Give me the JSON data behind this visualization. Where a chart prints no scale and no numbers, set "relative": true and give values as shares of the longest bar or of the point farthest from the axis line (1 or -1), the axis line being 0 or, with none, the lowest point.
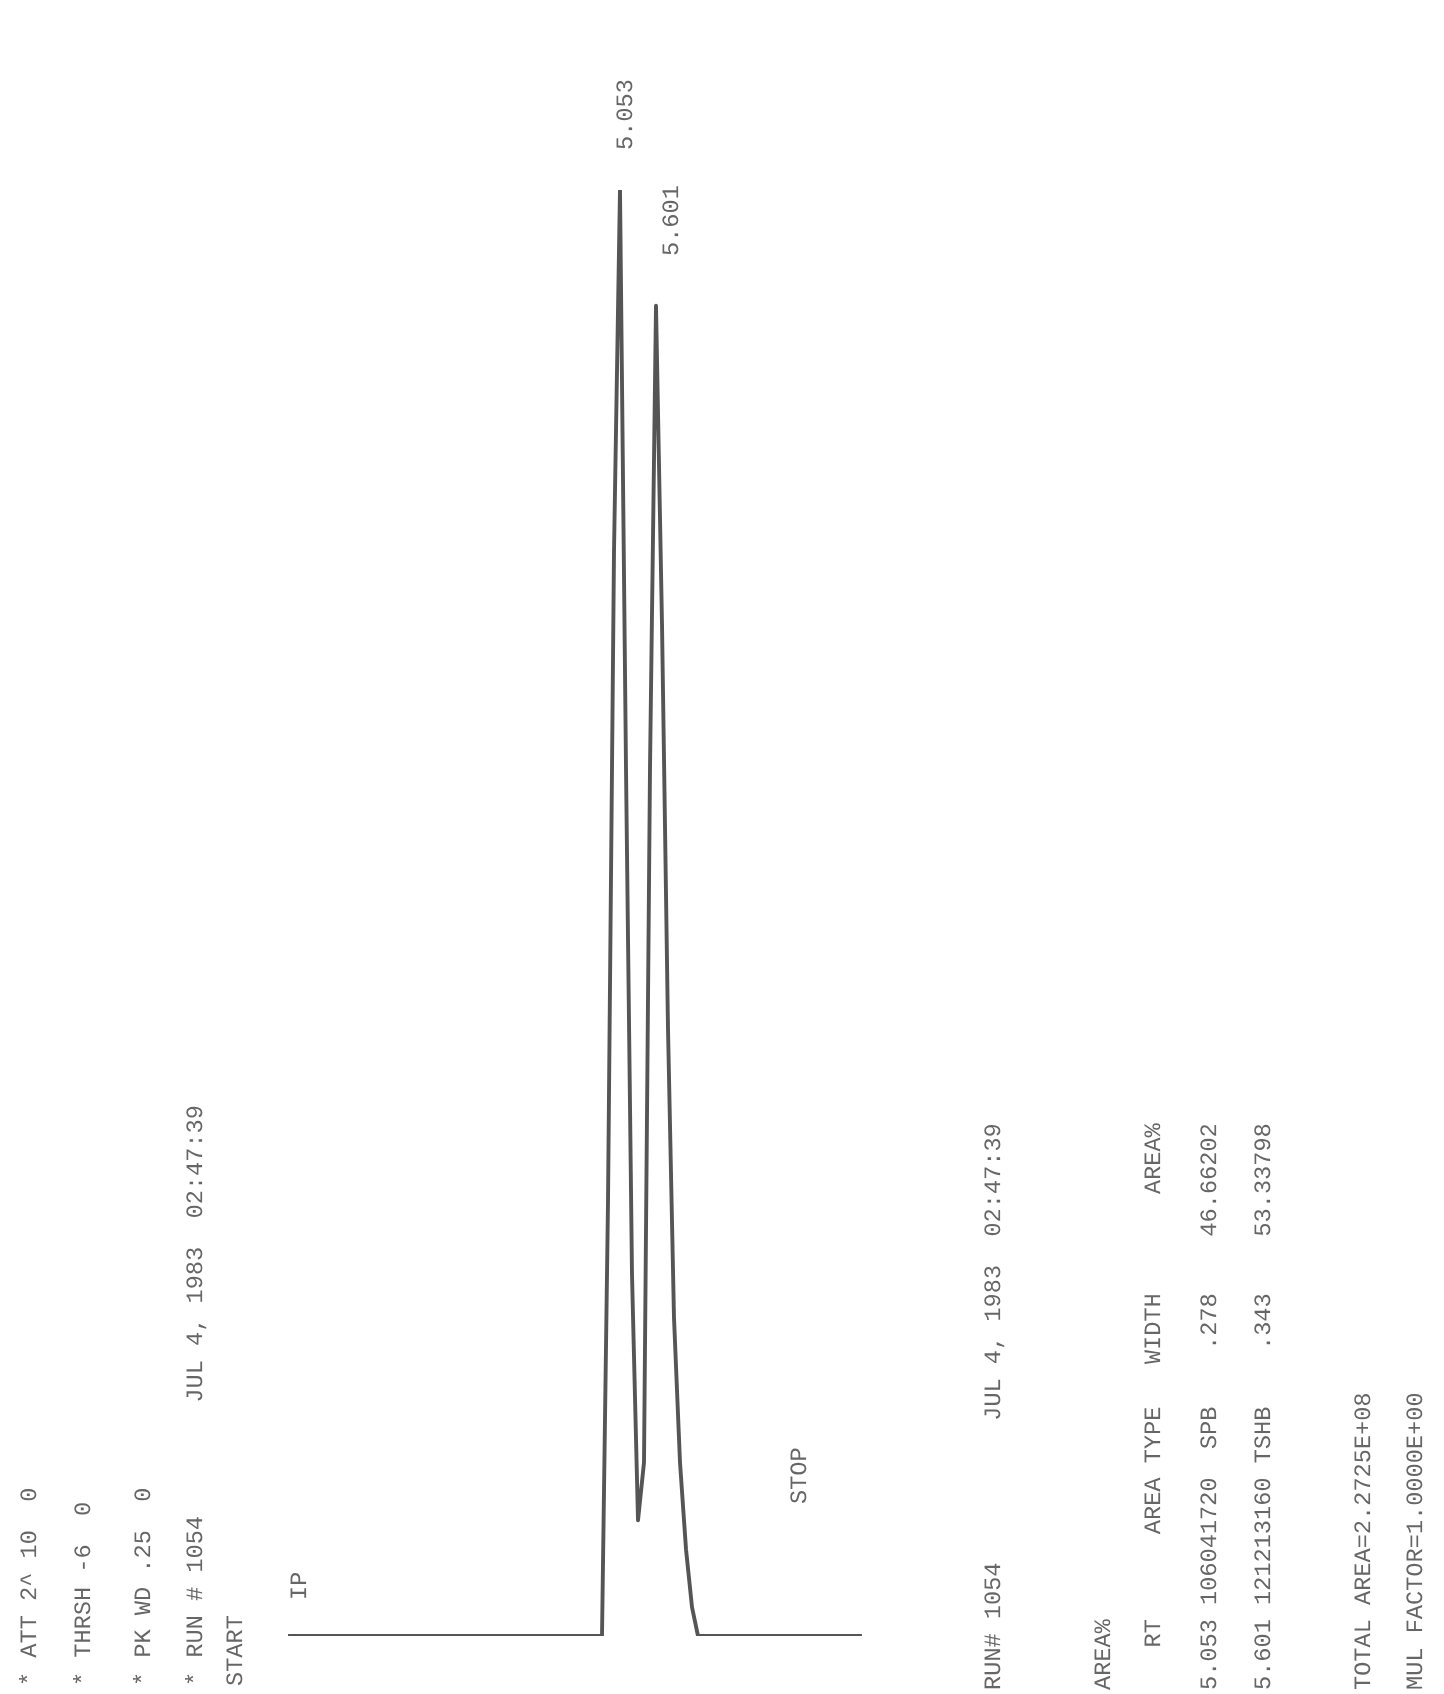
{
  "chart_data": {
    "type": "line",
    "relative": true,
    "color": "#555555",
    "marker": "none",
    "line_style": "solid",
    "categories": [
      null,
      null,
      null,
      null,
      null,
      null,
      null,
      null,
      null,
      null,
      null,
      null,
      null,
      null,
      null,
      null,
      null,
      null,
      null,
      null,
      null,
      null,
      null,
      null,
      null,
      null,
      null,
      null,
      null,
      null,
      null,
      null,
      null,
      null,
      null,
      null,
      null,
      null,
      null,
      null,
      null,
      null,
      null,
      null,
      null,
      null,
      null,
      null,
      null,
      null,
      null,
      null,
      null,
      null,
      null,
      null,
      null,
      null,
      null,
      null,
      null,
      null,
      null,
      null,
      null,
      null,
      null,
      null,
      null,
      null,
      null,
      null,
      null,
      null,
      null,
      null,
      null,
      null,
      null,
      null,
      null,
      null,
      null,
      null,
      null,
      null,
      null,
      null,
      null,
      null,
      null,
      null,
      null,
      null,
      null,
      null
    ],
    "values": [
      0,
      0,
      0,
      0,
      0,
      0,
      0,
      0,
      0,
      0,
      0,
      0,
      0,
      0,
      0,
      0,
      0,
      0,
      0,
      0,
      0,
      0,
      0,
      0,
      0,
      0,
      0,
      0,
      0,
      0,
      0,
      0,
      0,
      0,
      0,
      0,
      0,
      0,
      0,
      0,
      0,
      0,
      0,
      0,
      0,
      0,
      0,
      0,
      0,
      0,
      0,
      0,
      0,
      0.3,
      0.75,
      1,
      0.6,
      0.25,
      0.08,
      0.12,
      0.6,
      0.92,
      0.7,
      0.42,
      0.22,
      0.12,
      0.06,
      0.02,
      0,
      0,
      0,
      0,
      0,
      0,
      0,
      0,
      0,
      0,
      0,
      0,
      0,
      0,
      0,
      0,
      0,
      0,
      0,
      0,
      0,
      0,
      0,
      0,
      0,
      0,
      0,
      0
    ],
    "annotations": [
      "* ATT 2^ 10  0",
      "* THRSH -6  0",
      "* PK WD .25  0",
      "* RUN # 1054        JUL 4, 1983  02:47:39",
      "START",
      "IP",
      "5.053",
      "5.601",
      "STOP",
      "RUN# 1054          JUL 4, 1983  02:47:39",
      "AREA%",
      "   RT      AREA TYPE   WIDTH       AREA%",
      "5.053 106041720  SPB    .278    46.66202",
      "5.601 121213160 TSHB    .343    53.33798",
      "TOTAL AREA=2.2725E+08",
      "MUL FACTOR=1.0000E+00"
    ]
  }
}
